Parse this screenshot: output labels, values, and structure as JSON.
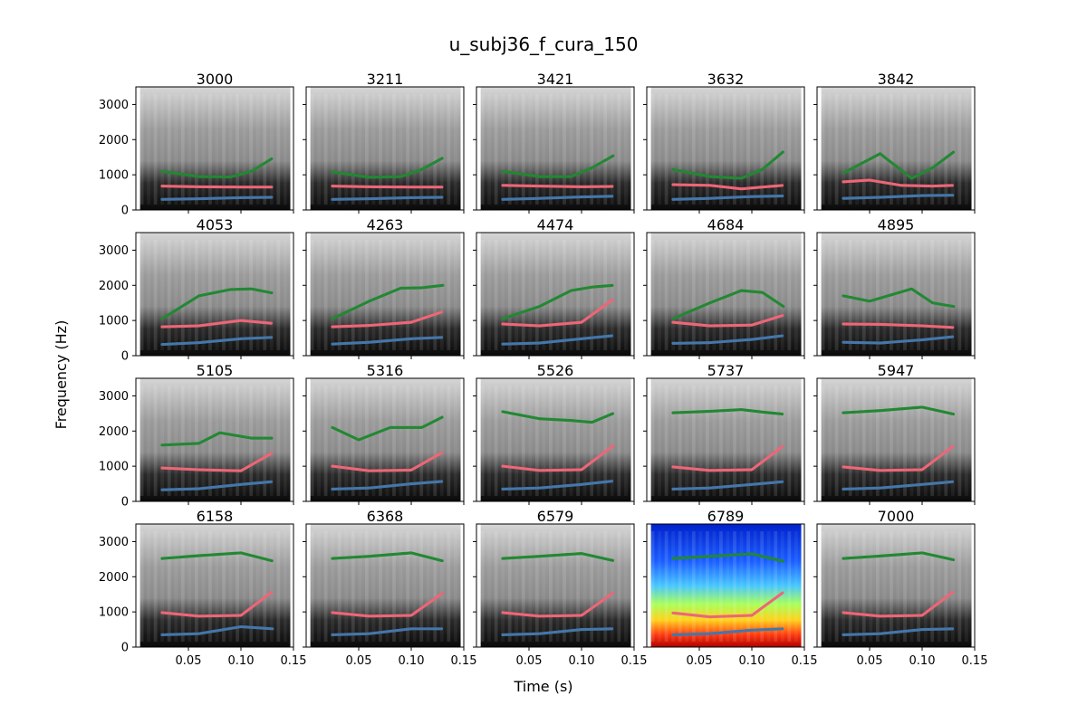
{
  "figure": {
    "title": "u_subj36_f_cura_150",
    "xlabel": "Time (s)",
    "ylabel": "Frequency (Hz)"
  },
  "chart_data": {
    "type": "line",
    "title": "u_subj36_f_cura_150",
    "xlabel": "Time (s)",
    "ylabel": "Frequency (Hz)",
    "xlim": [
      0.0,
      0.15
    ],
    "ylim": [
      0,
      3500
    ],
    "xticks": [
      0.05,
      0.1,
      0.15
    ],
    "xtick_labels": [
      "0.05",
      "0.10",
      "0.15"
    ],
    "yticks": [
      0,
      1000,
      2000,
      3000
    ],
    "ytick_labels": [
      "0",
      "1000",
      "2000",
      "3000"
    ],
    "grid": false,
    "series_colors": {
      "F1": "#4477aa",
      "F2": "#ee6677",
      "F3": "#228833"
    },
    "panels": [
      {
        "title": "3000",
        "colormap": "gray",
        "F1": [
          [
            0.025,
            300
          ],
          [
            0.06,
            320
          ],
          [
            0.1,
            350
          ],
          [
            0.13,
            360
          ]
        ],
        "F2": [
          [
            0.025,
            680
          ],
          [
            0.06,
            660
          ],
          [
            0.1,
            650
          ],
          [
            0.13,
            650
          ]
        ],
        "F3": [
          [
            0.025,
            1100
          ],
          [
            0.06,
            950
          ],
          [
            0.09,
            940
          ],
          [
            0.11,
            1100
          ],
          [
            0.13,
            1470
          ]
        ]
      },
      {
        "title": "3211",
        "colormap": "gray",
        "F1": [
          [
            0.025,
            300
          ],
          [
            0.06,
            320
          ],
          [
            0.1,
            350
          ],
          [
            0.13,
            360
          ]
        ],
        "F2": [
          [
            0.025,
            680
          ],
          [
            0.06,
            660
          ],
          [
            0.1,
            650
          ],
          [
            0.13,
            650
          ]
        ],
        "F3": [
          [
            0.025,
            1080
          ],
          [
            0.06,
            930
          ],
          [
            0.09,
            950
          ],
          [
            0.11,
            1150
          ],
          [
            0.13,
            1480
          ]
        ]
      },
      {
        "title": "3421",
        "colormap": "gray",
        "F1": [
          [
            0.025,
            300
          ],
          [
            0.06,
            330
          ],
          [
            0.1,
            370
          ],
          [
            0.13,
            390
          ]
        ],
        "F2": [
          [
            0.025,
            700
          ],
          [
            0.06,
            680
          ],
          [
            0.1,
            660
          ],
          [
            0.13,
            670
          ]
        ],
        "F3": [
          [
            0.025,
            1100
          ],
          [
            0.06,
            950
          ],
          [
            0.09,
            950
          ],
          [
            0.11,
            1200
          ],
          [
            0.13,
            1540
          ]
        ]
      },
      {
        "title": "3632",
        "colormap": "gray",
        "F1": [
          [
            0.025,
            300
          ],
          [
            0.06,
            330
          ],
          [
            0.1,
            380
          ],
          [
            0.13,
            400
          ]
        ],
        "F2": [
          [
            0.025,
            720
          ],
          [
            0.06,
            700
          ],
          [
            0.09,
            600
          ],
          [
            0.11,
            650
          ],
          [
            0.13,
            700
          ]
        ],
        "F3": [
          [
            0.025,
            1150
          ],
          [
            0.06,
            950
          ],
          [
            0.09,
            900
          ],
          [
            0.11,
            1150
          ],
          [
            0.13,
            1660
          ]
        ]
      },
      {
        "title": "3842",
        "colormap": "gray",
        "F1": [
          [
            0.025,
            330
          ],
          [
            0.06,
            360
          ],
          [
            0.1,
            410
          ],
          [
            0.13,
            420
          ]
        ],
        "F2": [
          [
            0.025,
            800
          ],
          [
            0.05,
            850
          ],
          [
            0.08,
            700
          ],
          [
            0.11,
            680
          ],
          [
            0.13,
            700
          ]
        ],
        "F3": [
          [
            0.025,
            1050
          ],
          [
            0.06,
            1600
          ],
          [
            0.09,
            900
          ],
          [
            0.11,
            1200
          ],
          [
            0.13,
            1650
          ]
        ]
      },
      {
        "title": "4053",
        "colormap": "gray",
        "F1": [
          [
            0.025,
            320
          ],
          [
            0.06,
            370
          ],
          [
            0.1,
            480
          ],
          [
            0.13,
            520
          ]
        ],
        "F2": [
          [
            0.025,
            820
          ],
          [
            0.06,
            850
          ],
          [
            0.1,
            1000
          ],
          [
            0.13,
            920
          ]
        ],
        "F3": [
          [
            0.025,
            1050
          ],
          [
            0.06,
            1700
          ],
          [
            0.09,
            1880
          ],
          [
            0.11,
            1900
          ],
          [
            0.13,
            1780
          ]
        ]
      },
      {
        "title": "4263",
        "colormap": "gray",
        "F1": [
          [
            0.025,
            330
          ],
          [
            0.06,
            380
          ],
          [
            0.1,
            480
          ],
          [
            0.13,
            520
          ]
        ],
        "F2": [
          [
            0.025,
            820
          ],
          [
            0.06,
            860
          ],
          [
            0.1,
            950
          ],
          [
            0.13,
            1250
          ]
        ],
        "F3": [
          [
            0.025,
            1050
          ],
          [
            0.06,
            1550
          ],
          [
            0.09,
            1920
          ],
          [
            0.11,
            1930
          ],
          [
            0.13,
            2000
          ]
        ]
      },
      {
        "title": "4474",
        "colormap": "gray",
        "F1": [
          [
            0.025,
            330
          ],
          [
            0.06,
            360
          ],
          [
            0.1,
            480
          ],
          [
            0.13,
            570
          ]
        ],
        "F2": [
          [
            0.025,
            900
          ],
          [
            0.06,
            850
          ],
          [
            0.1,
            950
          ],
          [
            0.13,
            1600
          ]
        ],
        "F3": [
          [
            0.025,
            1050
          ],
          [
            0.06,
            1400
          ],
          [
            0.09,
            1850
          ],
          [
            0.11,
            1950
          ],
          [
            0.13,
            2000
          ]
        ]
      },
      {
        "title": "4684",
        "colormap": "gray",
        "F1": [
          [
            0.025,
            350
          ],
          [
            0.06,
            370
          ],
          [
            0.1,
            460
          ],
          [
            0.13,
            570
          ]
        ],
        "F2": [
          [
            0.025,
            950
          ],
          [
            0.06,
            850
          ],
          [
            0.1,
            870
          ],
          [
            0.13,
            1150
          ]
        ],
        "F3": [
          [
            0.025,
            1050
          ],
          [
            0.06,
            1500
          ],
          [
            0.09,
            1850
          ],
          [
            0.11,
            1800
          ],
          [
            0.13,
            1400
          ]
        ]
      },
      {
        "title": "4895",
        "colormap": "gray",
        "F1": [
          [
            0.025,
            380
          ],
          [
            0.06,
            360
          ],
          [
            0.1,
            450
          ],
          [
            0.13,
            540
          ]
        ],
        "F2": [
          [
            0.025,
            900
          ],
          [
            0.06,
            890
          ],
          [
            0.1,
            850
          ],
          [
            0.13,
            800
          ]
        ],
        "F3": [
          [
            0.025,
            1700
          ],
          [
            0.05,
            1550
          ],
          [
            0.09,
            1900
          ],
          [
            0.11,
            1500
          ],
          [
            0.13,
            1400
          ]
        ]
      },
      {
        "title": "5105",
        "colormap": "gray",
        "F1": [
          [
            0.025,
            330
          ],
          [
            0.06,
            360
          ],
          [
            0.1,
            480
          ],
          [
            0.13,
            560
          ]
        ],
        "F2": [
          [
            0.025,
            950
          ],
          [
            0.06,
            900
          ],
          [
            0.1,
            870
          ],
          [
            0.13,
            1380
          ]
        ],
        "F3": [
          [
            0.025,
            1600
          ],
          [
            0.06,
            1650
          ],
          [
            0.08,
            1950
          ],
          [
            0.11,
            1800
          ],
          [
            0.13,
            1800
          ]
        ]
      },
      {
        "title": "5316",
        "colormap": "gray",
        "F1": [
          [
            0.025,
            350
          ],
          [
            0.06,
            380
          ],
          [
            0.1,
            500
          ],
          [
            0.13,
            570
          ]
        ],
        "F2": [
          [
            0.025,
            1000
          ],
          [
            0.06,
            870
          ],
          [
            0.1,
            890
          ],
          [
            0.13,
            1400
          ]
        ],
        "F3": [
          [
            0.025,
            2100
          ],
          [
            0.05,
            1750
          ],
          [
            0.08,
            2100
          ],
          [
            0.11,
            2100
          ],
          [
            0.13,
            2400
          ]
        ]
      },
      {
        "title": "5526",
        "colormap": "gray",
        "F1": [
          [
            0.025,
            350
          ],
          [
            0.06,
            380
          ],
          [
            0.1,
            480
          ],
          [
            0.13,
            580
          ]
        ],
        "F2": [
          [
            0.025,
            1000
          ],
          [
            0.06,
            880
          ],
          [
            0.1,
            900
          ],
          [
            0.13,
            1580
          ]
        ],
        "F3": [
          [
            0.025,
            2550
          ],
          [
            0.06,
            2350
          ],
          [
            0.09,
            2300
          ],
          [
            0.11,
            2250
          ],
          [
            0.13,
            2500
          ]
        ]
      },
      {
        "title": "5737",
        "colormap": "gray",
        "F1": [
          [
            0.025,
            350
          ],
          [
            0.06,
            380
          ],
          [
            0.1,
            480
          ],
          [
            0.13,
            560
          ]
        ],
        "F2": [
          [
            0.025,
            980
          ],
          [
            0.06,
            880
          ],
          [
            0.1,
            900
          ],
          [
            0.13,
            1580
          ]
        ],
        "F3": [
          [
            0.025,
            2520
          ],
          [
            0.06,
            2560
          ],
          [
            0.09,
            2610
          ],
          [
            0.11,
            2540
          ],
          [
            0.13,
            2480
          ]
        ]
      },
      {
        "title": "5947",
        "colormap": "gray",
        "F1": [
          [
            0.025,
            350
          ],
          [
            0.06,
            380
          ],
          [
            0.1,
            480
          ],
          [
            0.13,
            560
          ]
        ],
        "F2": [
          [
            0.025,
            980
          ],
          [
            0.06,
            880
          ],
          [
            0.1,
            900
          ],
          [
            0.13,
            1580
          ]
        ],
        "F3": [
          [
            0.025,
            2520
          ],
          [
            0.06,
            2580
          ],
          [
            0.1,
            2680
          ],
          [
            0.13,
            2480
          ]
        ]
      },
      {
        "title": "6158",
        "colormap": "gray",
        "F1": [
          [
            0.025,
            350
          ],
          [
            0.06,
            380
          ],
          [
            0.1,
            580
          ],
          [
            0.13,
            520
          ]
        ],
        "F2": [
          [
            0.025,
            980
          ],
          [
            0.06,
            880
          ],
          [
            0.1,
            900
          ],
          [
            0.13,
            1580
          ]
        ],
        "F3": [
          [
            0.025,
            2520
          ],
          [
            0.06,
            2600
          ],
          [
            0.1,
            2680
          ],
          [
            0.13,
            2450
          ]
        ]
      },
      {
        "title": "6368",
        "colormap": "gray",
        "F1": [
          [
            0.025,
            350
          ],
          [
            0.06,
            380
          ],
          [
            0.1,
            520
          ],
          [
            0.13,
            520
          ]
        ],
        "F2": [
          [
            0.025,
            980
          ],
          [
            0.06,
            880
          ],
          [
            0.1,
            900
          ],
          [
            0.13,
            1540
          ]
        ],
        "F3": [
          [
            0.025,
            2520
          ],
          [
            0.06,
            2580
          ],
          [
            0.1,
            2680
          ],
          [
            0.13,
            2450
          ]
        ]
      },
      {
        "title": "6579",
        "colormap": "gray",
        "F1": [
          [
            0.025,
            350
          ],
          [
            0.06,
            380
          ],
          [
            0.1,
            500
          ],
          [
            0.13,
            520
          ]
        ],
        "F2": [
          [
            0.025,
            980
          ],
          [
            0.06,
            880
          ],
          [
            0.1,
            900
          ],
          [
            0.13,
            1540
          ]
        ],
        "F3": [
          [
            0.025,
            2520
          ],
          [
            0.06,
            2580
          ],
          [
            0.1,
            2660
          ],
          [
            0.13,
            2460
          ]
        ]
      },
      {
        "title": "6789",
        "colormap": "jet",
        "F1": [
          [
            0.025,
            350
          ],
          [
            0.06,
            380
          ],
          [
            0.1,
            480
          ],
          [
            0.13,
            520
          ]
        ],
        "F2": [
          [
            0.025,
            970
          ],
          [
            0.06,
            860
          ],
          [
            0.1,
            900
          ],
          [
            0.13,
            1560
          ]
        ],
        "F3": [
          [
            0.025,
            2520
          ],
          [
            0.06,
            2580
          ],
          [
            0.1,
            2650
          ],
          [
            0.13,
            2440
          ]
        ]
      },
      {
        "title": "7000",
        "colormap": "gray",
        "F1": [
          [
            0.025,
            350
          ],
          [
            0.06,
            380
          ],
          [
            0.1,
            500
          ],
          [
            0.13,
            520
          ]
        ],
        "F2": [
          [
            0.025,
            980
          ],
          [
            0.06,
            880
          ],
          [
            0.1,
            900
          ],
          [
            0.13,
            1580
          ]
        ],
        "F3": [
          [
            0.025,
            2520
          ],
          [
            0.06,
            2590
          ],
          [
            0.1,
            2680
          ],
          [
            0.13,
            2480
          ]
        ]
      }
    ]
  }
}
